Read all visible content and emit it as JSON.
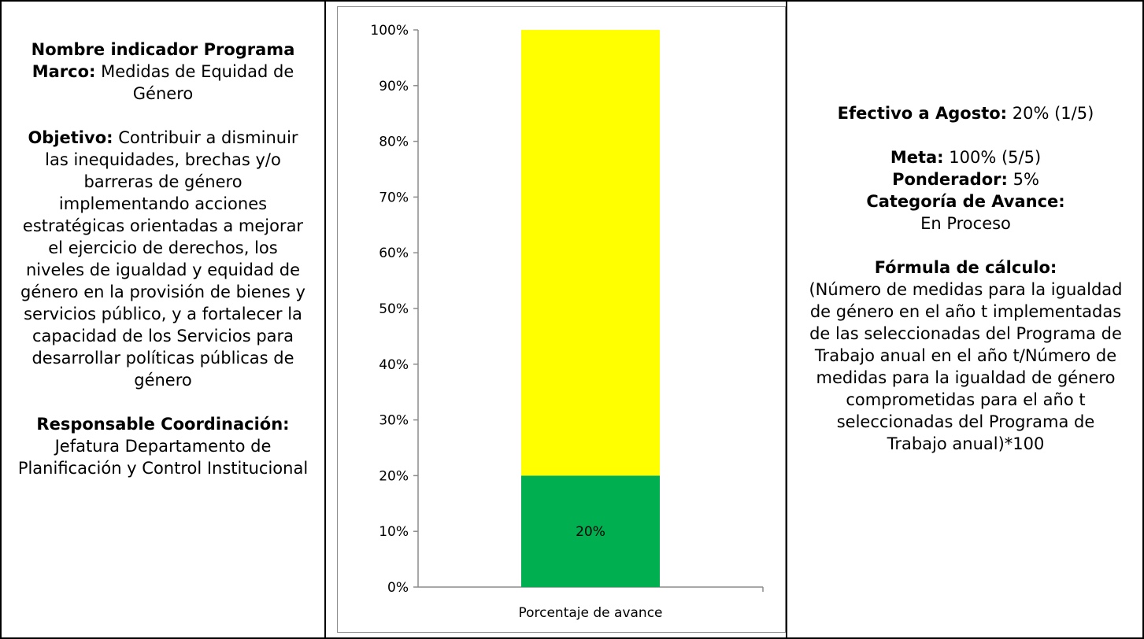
{
  "left": {
    "indicator_label": "Nombre indicador Programa Marco:",
    "indicator_value": "Medidas de Equidad de Género",
    "objective_label": "Objetivo:",
    "objective_value": "Contribuir a disminuir las inequidades, brechas y/o barreras de género implementando acciones estratégicas orientadas a mejorar el ejercicio de derechos, los niveles de igualdad y equidad de género en la provisión de bienes y servicios público, y a fortalecer la capacidad de los Servicios para desarrollar políticas públicas de género",
    "responsible_label": "Responsable Coordinación:",
    "responsible_value": "Jefatura Departamento de Planificación y Control Institucional"
  },
  "right": {
    "effective_label": "Efectivo a Agosto:",
    "effective_value": "20% (1/5)",
    "goal_label": "Meta:",
    "goal_value": "100% (5/5)",
    "weight_label": "Ponderador:",
    "weight_value": "5%",
    "category_label": "Categoría de Avance:",
    "category_value": "En Proceso",
    "formula_label": "Fórmula de cálculo:",
    "formula_value": "(Número de medidas para la igualdad de género en el año t implementadas de las seleccionadas del Programa de Trabajo anual en el año t/Número de medidas para la igualdad de género comprometidas para el año t seleccionadas del Programa de Trabajo anual)*100"
  },
  "chart_data": {
    "type": "bar",
    "stacked": true,
    "categories": [
      "Porcentaje de avance"
    ],
    "series": [
      {
        "values": [
          20
        ],
        "color": "#00B050",
        "data_labels": [
          "20%"
        ]
      },
      {
        "values": [
          80
        ],
        "color": "#FFFF00"
      }
    ],
    "yticks": [
      "0%",
      "10%",
      "20%",
      "30%",
      "40%",
      "50%",
      "60%",
      "70%",
      "80%",
      "90%",
      "100%"
    ],
    "ylim": [
      0,
      100
    ],
    "grid": false
  }
}
